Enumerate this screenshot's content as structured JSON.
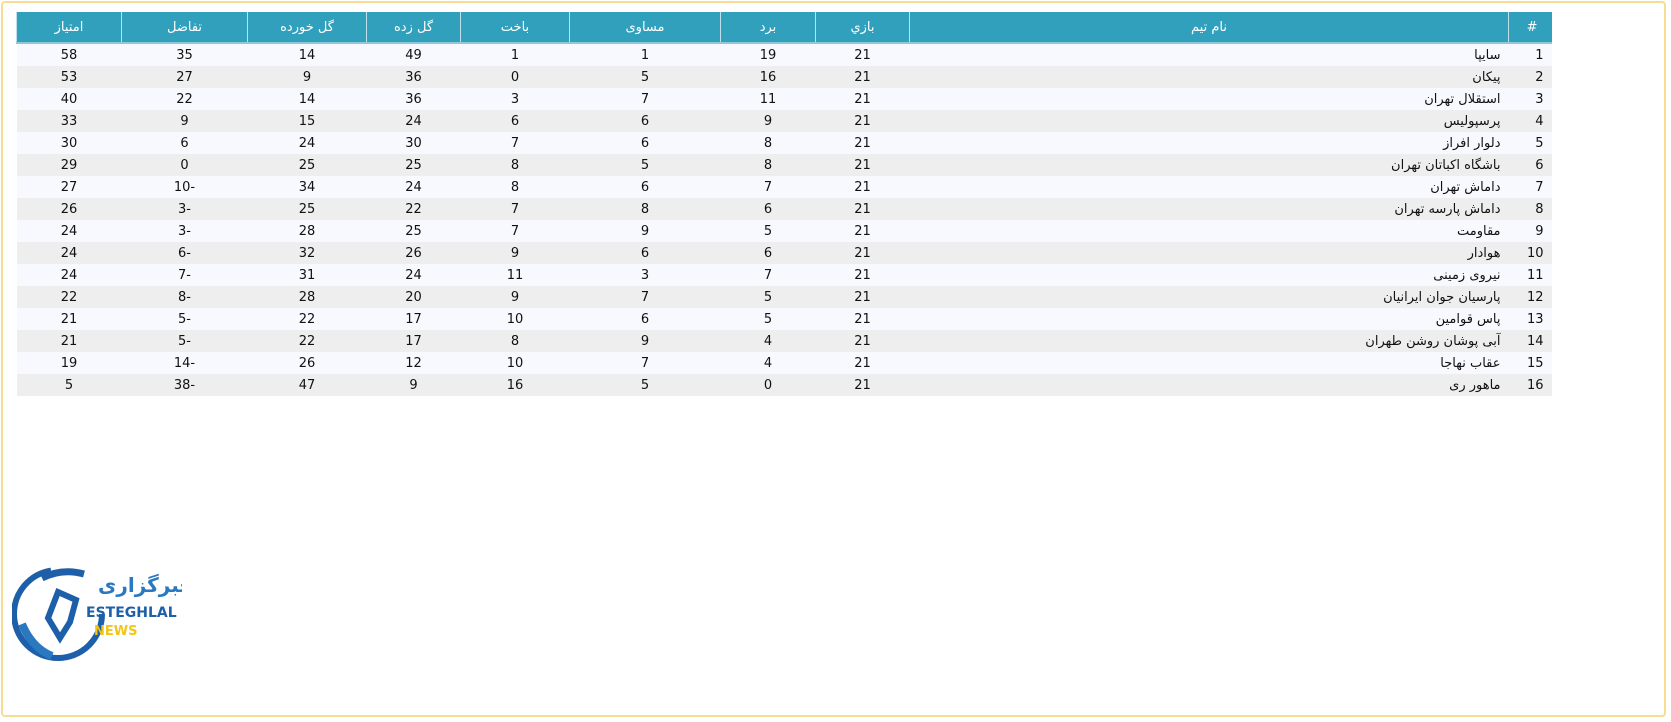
{
  "table": {
    "headers": [
      "#",
      "نام تیم",
      "بازي",
      "برد",
      "مساوی",
      "باخت",
      "گل زده",
      "گل خورده",
      "تفاضل",
      "امتیاز"
    ],
    "rows": [
      [
        "1",
        "سایپا",
        "21",
        "19",
        "1",
        "1",
        "49",
        "14",
        "35",
        "58"
      ],
      [
        "2",
        "پیکان",
        "21",
        "16",
        "5",
        "0",
        "36",
        "9",
        "27",
        "53"
      ],
      [
        "3",
        "استقلال تهران",
        "21",
        "11",
        "7",
        "3",
        "36",
        "14",
        "22",
        "40"
      ],
      [
        "4",
        "پرسپولیس",
        "21",
        "9",
        "6",
        "6",
        "24",
        "15",
        "9",
        "33"
      ],
      [
        "5",
        "دلوار افراز",
        "21",
        "8",
        "6",
        "7",
        "30",
        "24",
        "6",
        "30"
      ],
      [
        "6",
        "باشگاه اکباتان تهران",
        "21",
        "8",
        "5",
        "8",
        "25",
        "25",
        "0",
        "29"
      ],
      [
        "7",
        "داماش تهران",
        "21",
        "7",
        "6",
        "8",
        "24",
        "34",
        "-10",
        "27"
      ],
      [
        "8",
        "داماش پارسه تهران",
        "21",
        "6",
        "8",
        "7",
        "22",
        "25",
        "-3",
        "26"
      ],
      [
        "9",
        "مقاومت",
        "21",
        "5",
        "9",
        "7",
        "25",
        "28",
        "-3",
        "24"
      ],
      [
        "10",
        "هوادار",
        "21",
        "6",
        "6",
        "9",
        "26",
        "32",
        "-6",
        "24"
      ],
      [
        "11",
        "نیروی زمینی",
        "21",
        "7",
        "3",
        "11",
        "24",
        "31",
        "-7",
        "24"
      ],
      [
        "12",
        "پارسیان جوان ایرانیان",
        "21",
        "5",
        "7",
        "9",
        "20",
        "28",
        "-8",
        "22"
      ],
      [
        "13",
        "پاس قوامین",
        "21",
        "5",
        "6",
        "10",
        "17",
        "22",
        "-5",
        "21"
      ],
      [
        "14",
        "آبی پوشان روشن طهران",
        "21",
        "4",
        "9",
        "8",
        "17",
        "22",
        "-5",
        "21"
      ],
      [
        "15",
        "عقاب نهاجا",
        "21",
        "4",
        "7",
        "10",
        "12",
        "26",
        "-14",
        "19"
      ],
      [
        "16",
        "ماهور ری",
        "21",
        "0",
        "5",
        "16",
        "9",
        "47",
        "-38",
        "5"
      ]
    ]
  },
  "logo": {
    "text_fa": "خبرگزاری",
    "text_en": "ESTEGHLAL",
    "text_news": "NEWS"
  },
  "colors": {
    "header": "#31a0bd",
    "row_odd": "#f8f9ff",
    "row_even": "#eeeeee",
    "frame": "#f7dc94",
    "logo_blue": "#1d5fa8",
    "logo_yellow": "#f2c515"
  }
}
